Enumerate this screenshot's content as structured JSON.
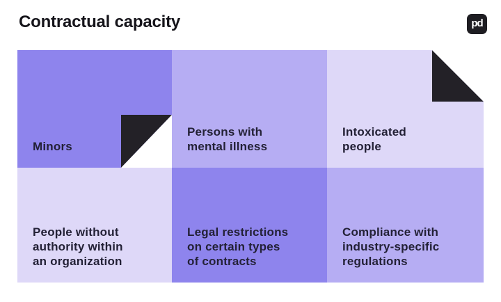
{
  "header": {
    "title": "Contractual capacity"
  },
  "logo": {
    "label": "pd"
  },
  "colors": {
    "background": "#ffffff",
    "title_text": "#15141a",
    "cell_text": "#232136",
    "fold_flap": "#232127",
    "purple_dark": "#8e84ed",
    "purple_mid": "#b6adf3",
    "purple_light": "#ded8f8",
    "logo_bg": "#1e1d22",
    "logo_text": "#ffffff"
  },
  "grid": {
    "cells": [
      {
        "label": "Minors",
        "bg": "#8e84ed",
        "fold": "bottom-right"
      },
      {
        "label": "Persons with\nmental illness",
        "bg": "#b6adf3",
        "fold": "none"
      },
      {
        "label": "Intoxicated\npeople",
        "bg": "#ded8f8",
        "fold": "top-right"
      },
      {
        "label": "People without\nauthority within\nan organization",
        "bg": "#ded8f8",
        "fold": "none"
      },
      {
        "label": "Legal restrictions\non certain types\nof contracts",
        "bg": "#8e84ed",
        "fold": "none"
      },
      {
        "label": "Compliance with\nindustry-specific\nregulations",
        "bg": "#b6adf3",
        "fold": "none"
      }
    ]
  }
}
